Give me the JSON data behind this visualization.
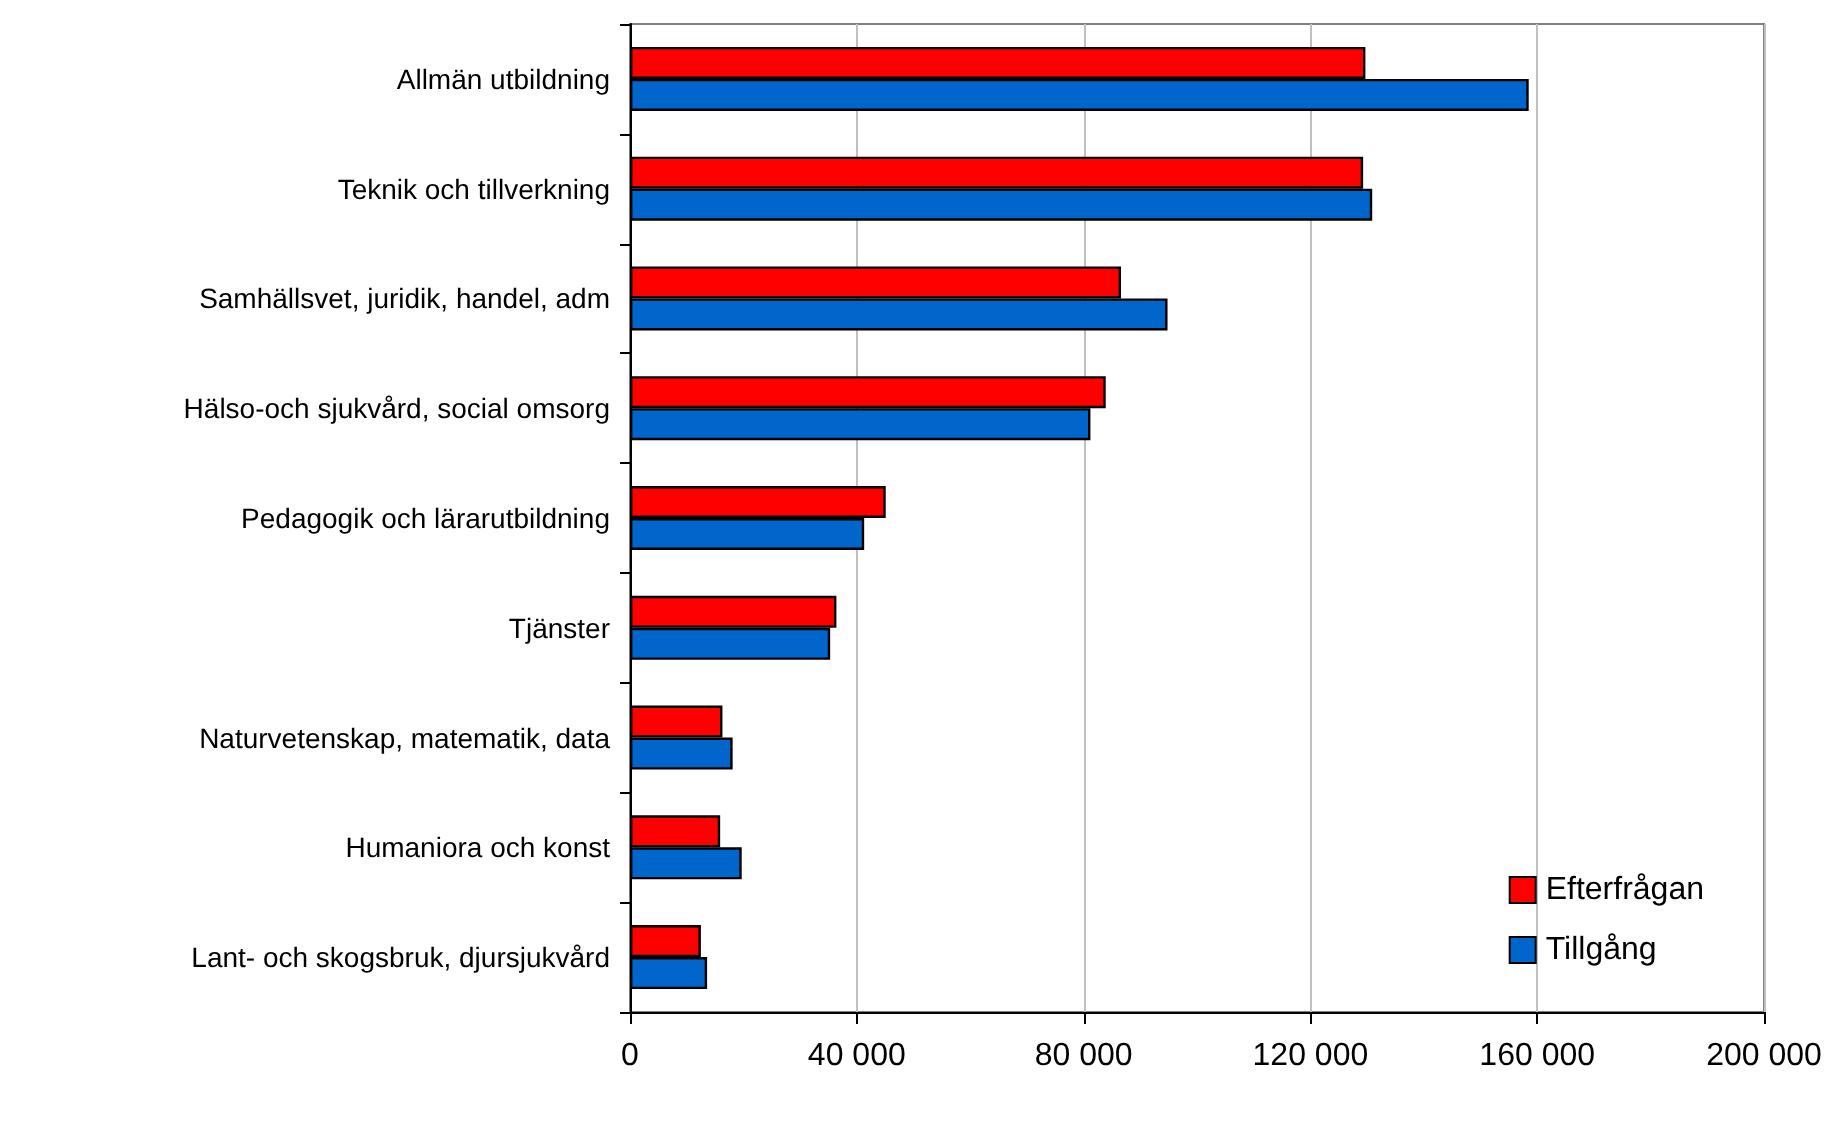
{
  "chart_data": {
    "type": "bar",
    "orientation": "horizontal",
    "categories": [
      "Allmän utbildning",
      "Teknik och tillverkning",
      "Samhällsvet, juridik, handel, adm",
      "Hälso-och sjukvård, social omsorg",
      "Pedagogik och lärarutbildning",
      "Tjänster",
      "Naturvetenskap, matematik, data",
      "Humaniora och konst",
      "Lant- och skogsbruk, djursjukvård"
    ],
    "series": [
      {
        "name": "Efterfrågan",
        "color": "#ff0000",
        "values": [
          129700,
          129300,
          86600,
          83900,
          45100,
          36400,
          16300,
          15900,
          12500
        ]
      },
      {
        "name": "Tillgång",
        "color": "#0066cc",
        "values": [
          158500,
          130900,
          94800,
          81200,
          41300,
          35300,
          18100,
          19700,
          13600
        ]
      }
    ],
    "xlim": [
      0,
      200000
    ],
    "xticks": [
      {
        "value": 0,
        "label": "0"
      },
      {
        "value": 40000,
        "label": "40 000"
      },
      {
        "value": 80000,
        "label": "80 000"
      },
      {
        "value": 120000,
        "label": "120 000"
      },
      {
        "value": 160000,
        "label": "160 000"
      },
      {
        "value": 200000,
        "label": "200 000"
      }
    ],
    "grid": "x",
    "legend": "bottom right"
  }
}
